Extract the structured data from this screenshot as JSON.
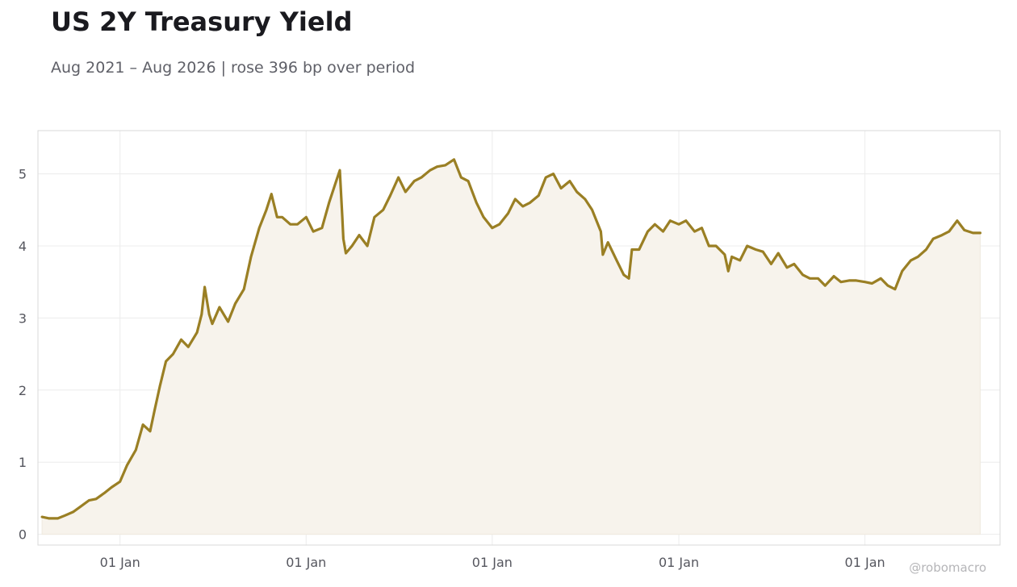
{
  "chart_data": {
    "type": "area",
    "title": "US 2Y Treasury Yield",
    "subtitle": "Aug 2021 – Aug 2026 | rose 396 bp over period",
    "xlabel": "",
    "ylabel": "",
    "ylim": [
      -0.15,
      5.6
    ],
    "xlim": [
      "2021-07-24",
      "2026-09-23"
    ],
    "yticks": [
      0,
      1,
      2,
      3,
      4,
      5
    ],
    "xticks": [
      {
        "date": "2022-01-01",
        "label": "01 Jan"
      },
      {
        "date": "2023-01-01",
        "label": "01 Jan"
      },
      {
        "date": "2024-01-01",
        "label": "01 Jan"
      },
      {
        "date": "2025-01-01",
        "label": "01 Jan"
      },
      {
        "date": "2026-01-01",
        "label": "01 Jan"
      }
    ],
    "grid": true,
    "colors": {
      "line": "#9a7f24",
      "fill": "#f7f3ec",
      "grid": "#ececec",
      "frame": "#d9d9d9"
    },
    "series": [
      {
        "x": [
          "2021-08-01",
          "2021-08-15",
          "2021-09-01",
          "2021-09-15",
          "2021-10-01",
          "2021-10-15",
          "2021-11-01",
          "2021-11-15",
          "2021-12-01",
          "2021-12-15",
          "2022-01-01",
          "2022-01-15",
          "2022-02-01",
          "2022-02-15",
          "2022-03-01",
          "2022-03-10",
          "2022-03-20",
          "2022-04-01",
          "2022-04-15",
          "2022-05-01",
          "2022-05-15",
          "2022-06-01",
          "2022-06-10",
          "2022-06-16",
          "2022-06-25",
          "2022-07-01",
          "2022-07-15",
          "2022-08-01",
          "2022-08-15",
          "2022-09-01",
          "2022-09-15",
          "2022-10-01",
          "2022-10-15",
          "2022-10-25",
          "2022-11-05",
          "2022-11-15",
          "2022-12-01",
          "2022-12-15",
          "2023-01-01",
          "2023-01-15",
          "2023-02-01",
          "2023-02-15",
          "2023-03-01",
          "2023-03-08",
          "2023-03-13",
          "2023-03-15",
          "2023-03-20",
          "2023-04-01",
          "2023-04-15",
          "2023-05-01",
          "2023-05-15",
          "2023-06-01",
          "2023-06-15",
          "2023-07-01",
          "2023-07-15",
          "2023-08-01",
          "2023-08-15",
          "2023-09-01",
          "2023-09-15",
          "2023-10-01",
          "2023-10-18",
          "2023-11-01",
          "2023-11-15",
          "2023-12-01",
          "2023-12-15",
          "2024-01-01",
          "2024-01-15",
          "2024-02-01",
          "2024-02-15",
          "2024-03-01",
          "2024-03-15",
          "2024-04-01",
          "2024-04-15",
          "2024-04-30",
          "2024-05-15",
          "2024-06-01",
          "2024-06-15",
          "2024-07-01",
          "2024-07-15",
          "2024-08-01",
          "2024-08-05",
          "2024-08-15",
          "2024-09-01",
          "2024-09-15",
          "2024-09-25",
          "2024-10-01",
          "2024-10-15",
          "2024-11-01",
          "2024-11-15",
          "2024-12-01",
          "2024-12-15",
          "2025-01-01",
          "2025-01-15",
          "2025-02-01",
          "2025-02-15",
          "2025-03-01",
          "2025-03-15",
          "2025-04-01",
          "2025-04-08",
          "2025-04-15",
          "2025-05-01",
          "2025-05-15",
          "2025-06-01",
          "2025-06-15",
          "2025-07-01",
          "2025-07-15",
          "2025-08-01",
          "2025-08-15",
          "2025-09-01",
          "2025-09-15",
          "2025-10-01",
          "2025-10-15",
          "2025-11-01",
          "2025-11-15",
          "2025-12-01",
          "2025-12-15",
          "2026-01-01",
          "2026-01-15",
          "2026-02-01",
          "2026-02-15",
          "2026-03-01",
          "2026-03-15",
          "2026-04-01",
          "2026-04-15",
          "2026-05-01",
          "2026-05-15",
          "2026-06-01",
          "2026-06-15",
          "2026-07-01",
          "2026-07-15",
          "2026-08-01",
          "2026-08-15"
        ],
        "values": [
          0.24,
          0.22,
          0.22,
          0.26,
          0.31,
          0.38,
          0.47,
          0.49,
          0.57,
          0.65,
          0.73,
          0.96,
          1.17,
          1.52,
          1.43,
          1.73,
          2.05,
          2.4,
          2.5,
          2.7,
          2.6,
          2.8,
          3.05,
          3.43,
          3.05,
          2.92,
          3.15,
          2.95,
          3.2,
          3.4,
          3.85,
          4.25,
          4.5,
          4.72,
          4.4,
          4.4,
          4.3,
          4.3,
          4.4,
          4.2,
          4.25,
          4.6,
          4.9,
          5.05,
          4.4,
          4.1,
          3.9,
          4.0,
          4.15,
          4.0,
          4.4,
          4.5,
          4.7,
          4.95,
          4.75,
          4.9,
          4.95,
          5.05,
          5.1,
          5.12,
          5.2,
          4.95,
          4.9,
          4.6,
          4.4,
          4.25,
          4.3,
          4.45,
          4.65,
          4.55,
          4.6,
          4.7,
          4.95,
          5.0,
          4.8,
          4.9,
          4.75,
          4.65,
          4.5,
          4.2,
          3.88,
          4.05,
          3.8,
          3.6,
          3.55,
          3.95,
          3.95,
          4.2,
          4.3,
          4.2,
          4.35,
          4.3,
          4.35,
          4.2,
          4.25,
          4.0,
          4.0,
          3.88,
          3.65,
          3.85,
          3.8,
          4.0,
          3.95,
          3.92,
          3.75,
          3.9,
          3.7,
          3.75,
          3.6,
          3.55,
          3.55,
          3.45,
          3.58,
          3.5,
          3.52,
          3.52,
          3.5,
          3.48,
          3.55,
          3.45,
          3.4,
          3.65,
          3.8,
          3.85,
          3.95,
          4.1,
          4.15,
          4.2,
          4.35,
          4.22,
          4.18,
          4.18
        ]
      }
    ]
  },
  "watermark": "@robomacro"
}
